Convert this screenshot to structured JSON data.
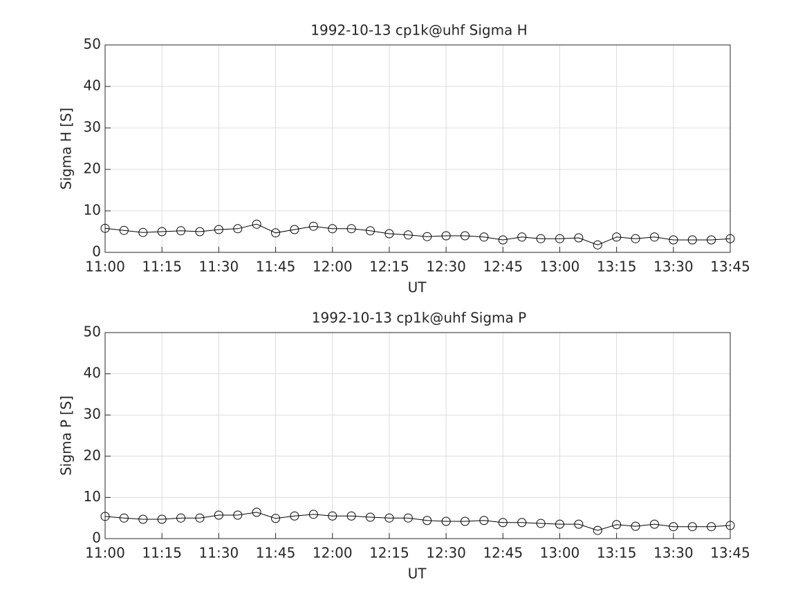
{
  "chart_data": [
    {
      "type": "line",
      "title": "1992-10-13  cp1k@uhf Sigma H",
      "xlabel": "UT",
      "ylabel": "Sigma H [S]",
      "x": [
        "11:00",
        "11:05",
        "11:10",
        "11:15",
        "11:20",
        "11:25",
        "11:30",
        "11:35",
        "11:40",
        "11:45",
        "11:50",
        "11:55",
        "12:00",
        "12:05",
        "12:10",
        "12:15",
        "12:20",
        "12:25",
        "12:30",
        "12:35",
        "12:40",
        "12:45",
        "12:50",
        "12:55",
        "13:00",
        "13:05",
        "13:10",
        "13:15",
        "13:20",
        "13:25",
        "13:30",
        "13:35",
        "13:40",
        "13:45"
      ],
      "values": [
        5.8,
        5.3,
        4.8,
        5.0,
        5.2,
        5.0,
        5.5,
        5.7,
        6.8,
        4.7,
        5.5,
        6.3,
        5.7,
        5.7,
        5.2,
        4.5,
        4.2,
        3.8,
        4.0,
        4.0,
        3.7,
        3.0,
        3.7,
        3.3,
        3.3,
        3.5,
        1.8,
        3.7,
        3.3,
        3.7,
        3.0,
        3.0,
        3.0,
        3.3
      ],
      "color": "#000000",
      "xlim": [
        "11:00",
        "13:45"
      ],
      "xticks": [
        "11:00",
        "11:15",
        "11:30",
        "11:45",
        "12:00",
        "12:15",
        "12:30",
        "12:45",
        "13:00",
        "13:15",
        "13:30",
        "13:45"
      ],
      "ylim": [
        0,
        50
      ],
      "yticks": [
        0,
        10,
        20,
        30,
        40,
        50
      ],
      "grid": true
    },
    {
      "type": "line",
      "title": "1992-10-13  cp1k@uhf Sigma P",
      "xlabel": "UT",
      "ylabel": "Sigma P [S]",
      "x": [
        "11:00",
        "11:05",
        "11:10",
        "11:15",
        "11:20",
        "11:25",
        "11:30",
        "11:35",
        "11:40",
        "11:45",
        "11:50",
        "11:55",
        "12:00",
        "12:05",
        "12:10",
        "12:15",
        "12:20",
        "12:25",
        "12:30",
        "12:35",
        "12:40",
        "12:45",
        "12:50",
        "12:55",
        "13:00",
        "13:05",
        "13:10",
        "13:15",
        "13:20",
        "13:25",
        "13:30",
        "13:35",
        "13:40",
        "13:45"
      ],
      "values": [
        5.4,
        5.0,
        4.7,
        4.7,
        5.0,
        5.0,
        5.7,
        5.7,
        6.4,
        4.9,
        5.5,
        5.9,
        5.5,
        5.5,
        5.2,
        5.0,
        5.0,
        4.4,
        4.2,
        4.2,
        4.4,
        3.9,
        3.9,
        3.7,
        3.5,
        3.5,
        2.0,
        3.4,
        3.0,
        3.5,
        2.9,
        2.9,
        2.9,
        3.2
      ],
      "color": "#000000",
      "xlim": [
        "11:00",
        "13:45"
      ],
      "xticks": [
        "11:00",
        "11:15",
        "11:30",
        "11:45",
        "12:00",
        "12:15",
        "12:30",
        "12:45",
        "13:00",
        "13:15",
        "13:30",
        "13:45"
      ],
      "ylim": [
        0,
        50
      ],
      "yticks": [
        0,
        10,
        20,
        30,
        40,
        50
      ],
      "grid": true
    }
  ]
}
